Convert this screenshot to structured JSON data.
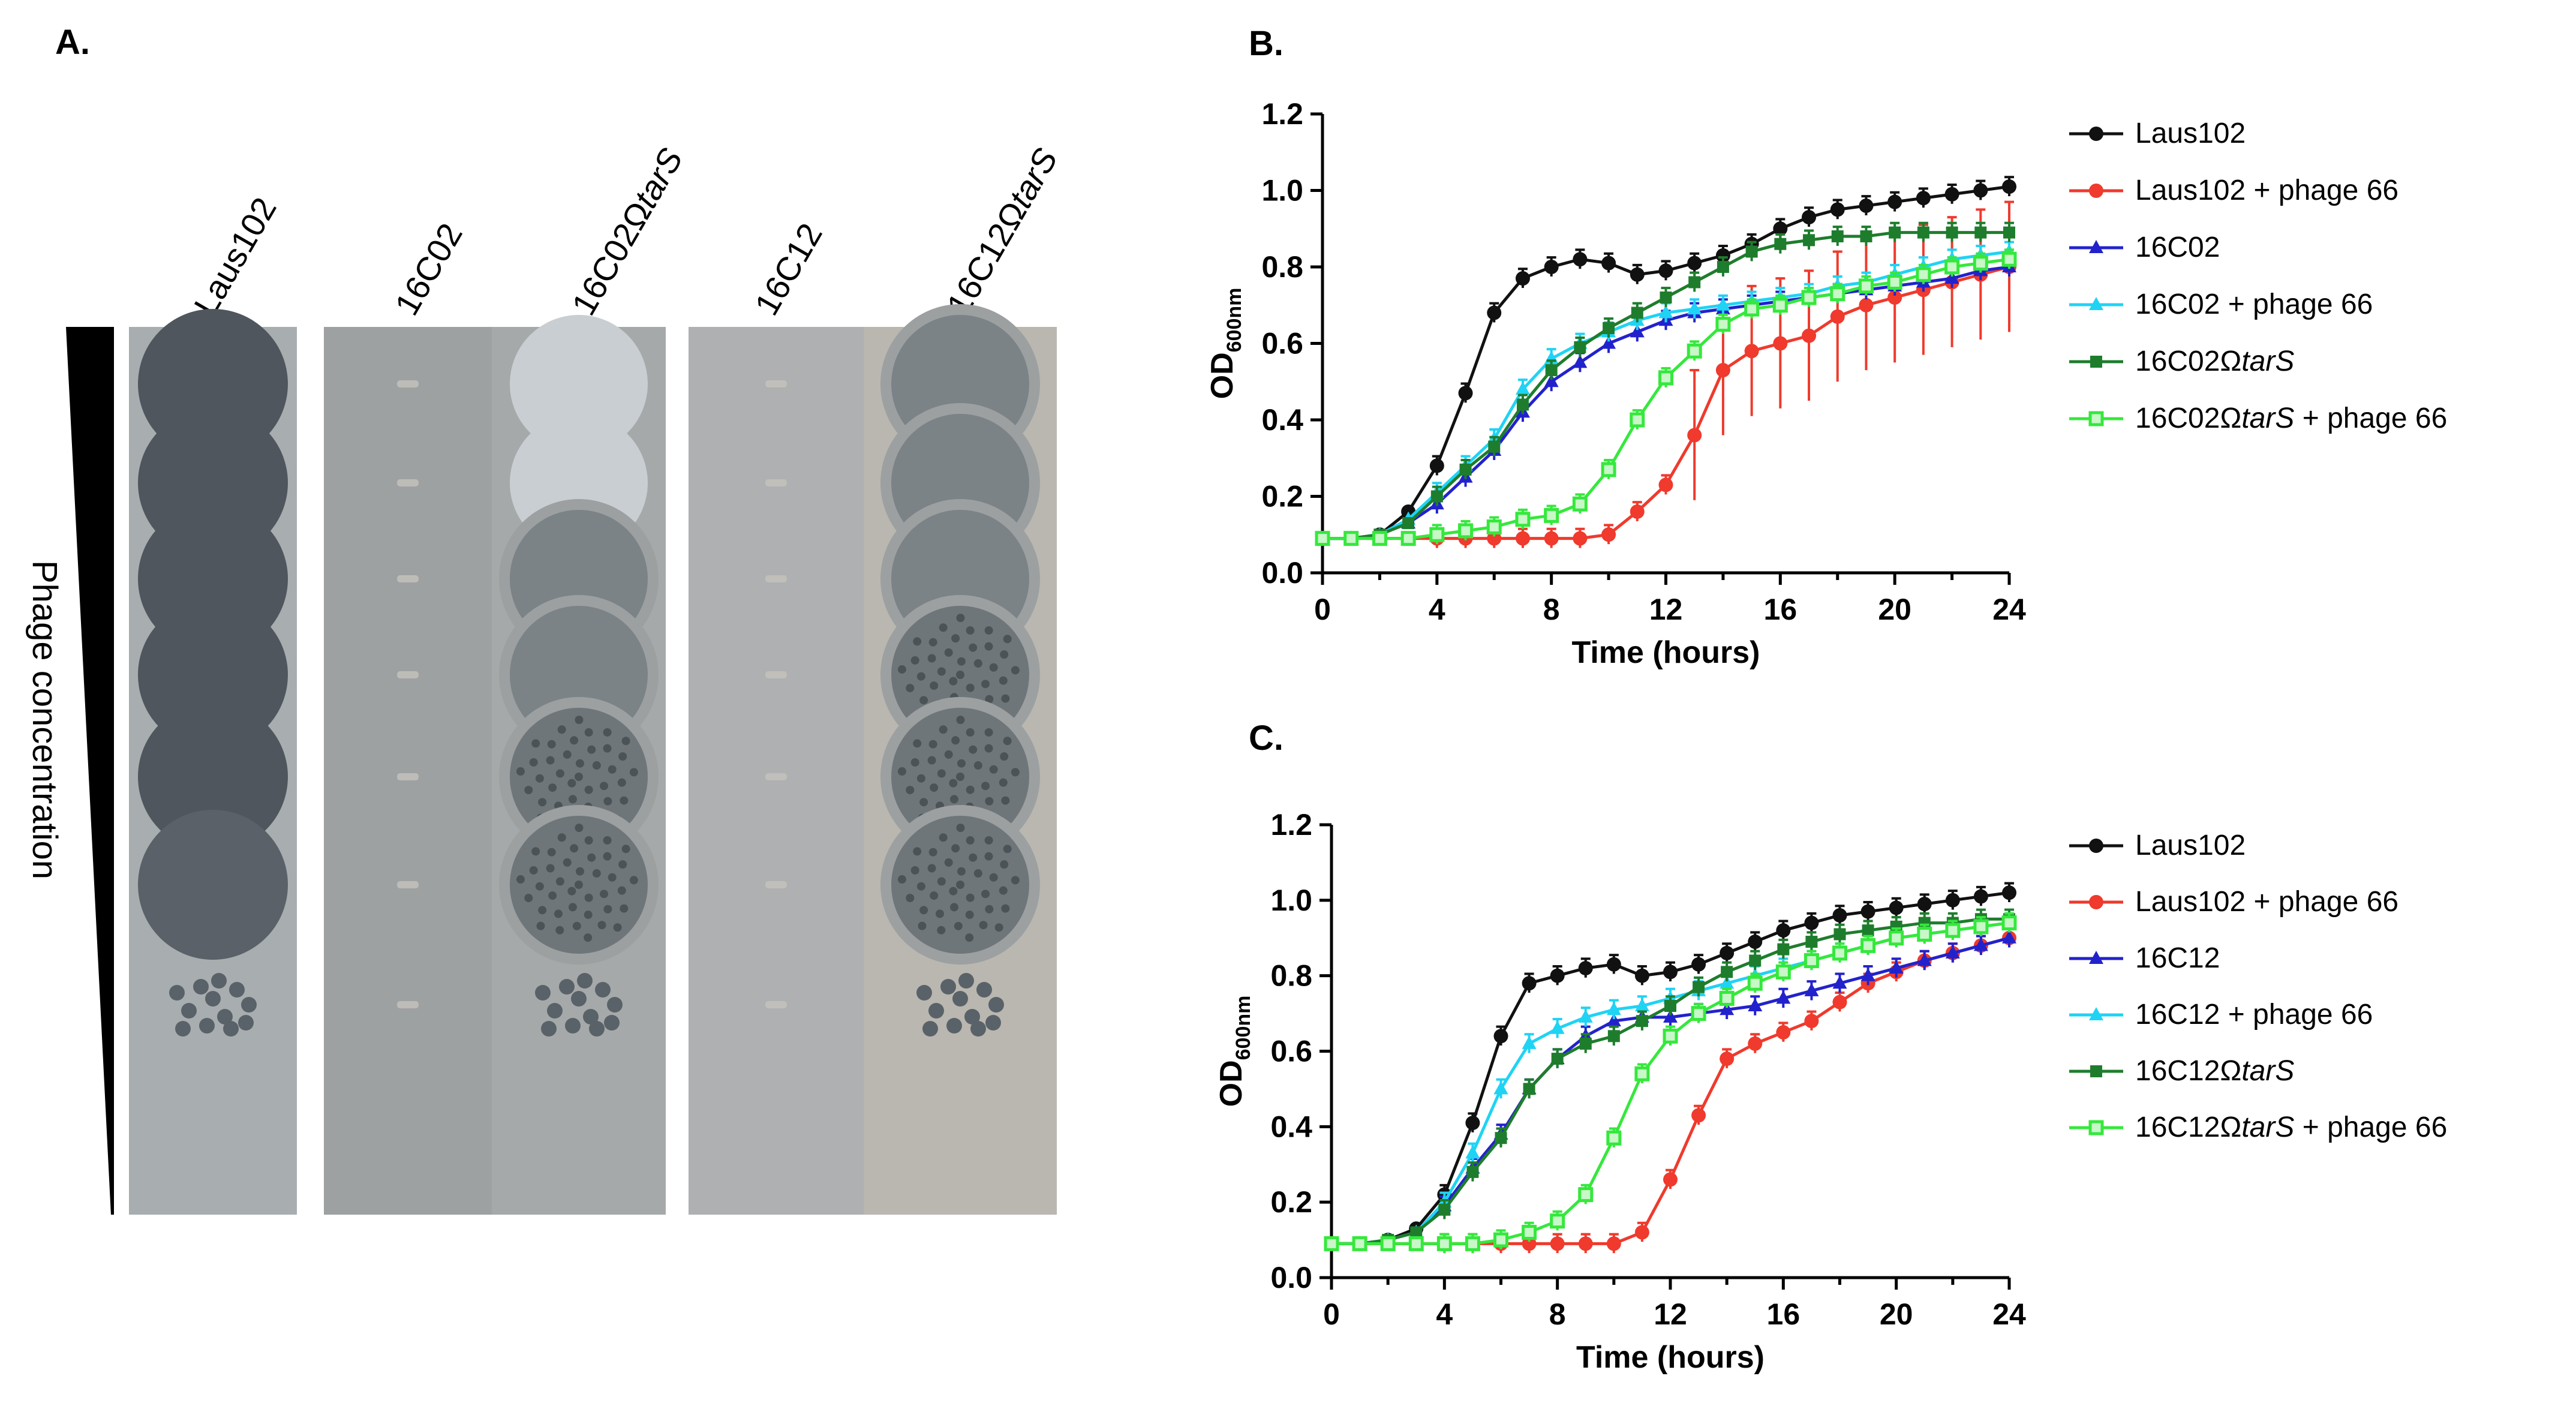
{
  "panel_a": {
    "label": "A.",
    "side_label": "Phage concentration",
    "strips": [
      {
        "name": "Laus102",
        "suffix": "",
        "plaques": [
          "clear",
          "clear",
          "clear",
          "clear",
          "clear",
          "clear-ragged",
          "spots"
        ]
      },
      {
        "name": "16C02",
        "suffix": "",
        "plaques": [
          "none",
          "none",
          "none",
          "none",
          "none",
          "none",
          "none"
        ]
      },
      {
        "name": "16C02Ω",
        "suffix": "tarS",
        "plaques": [
          "light",
          "light",
          "turbid",
          "turbid",
          "speckled",
          "speckled",
          "spots"
        ]
      },
      {
        "name": "16C12",
        "suffix": "",
        "plaques": [
          "none",
          "none",
          "none",
          "none",
          "none",
          "none",
          "none"
        ]
      },
      {
        "name": "16C12Ω",
        "suffix": "tarS",
        "plaques": [
          "turbid",
          "turbid",
          "turbid",
          "speckled",
          "speckled",
          "speckled",
          "spots"
        ]
      }
    ]
  },
  "chart_data": [
    {
      "panel_label": "B.",
      "type": "line",
      "xlabel": "Time (hours)",
      "ylabel": "OD",
      "ylabel_sub": "600nm",
      "xlim": [
        0,
        24
      ],
      "ylim": [
        0,
        1.2
      ],
      "xticks": [
        "0",
        "4",
        "8",
        "12",
        "16",
        "20",
        "24"
      ],
      "yticks": [
        "0.0",
        "0.2",
        "0.4",
        "0.6",
        "0.8",
        "1.0",
        "1.2"
      ],
      "x": [
        0,
        1,
        2,
        3,
        4,
        5,
        6,
        7,
        8,
        9,
        10,
        11,
        12,
        13,
        14,
        15,
        16,
        17,
        18,
        19,
        20,
        21,
        22,
        23,
        24
      ],
      "series": [
        {
          "name": "Laus102",
          "name_italic": "",
          "name_tail": "",
          "color": "#111111",
          "marker": "circle",
          "values": [
            0.09,
            0.09,
            0.1,
            0.16,
            0.28,
            0.47,
            0.68,
            0.77,
            0.8,
            0.82,
            0.81,
            0.78,
            0.79,
            0.81,
            0.83,
            0.86,
            0.9,
            0.93,
            0.95,
            0.96,
            0.97,
            0.98,
            0.99,
            1.0,
            1.01
          ]
        },
        {
          "name": "Laus102 + phage 66",
          "name_italic": "",
          "name_tail": "",
          "color": "#ef3a2d",
          "marker": "circle",
          "values": [
            0.09,
            0.09,
            0.09,
            0.09,
            0.09,
            0.09,
            0.09,
            0.09,
            0.09,
            0.09,
            0.1,
            0.16,
            0.23,
            0.36,
            0.53,
            0.58,
            0.6,
            0.62,
            0.67,
            0.7,
            0.72,
            0.74,
            0.76,
            0.78,
            0.8
          ]
        },
        {
          "name": "16C02",
          "name_italic": "",
          "name_tail": "",
          "color": "#2222cc",
          "marker": "triangle",
          "values": [
            0.09,
            0.09,
            0.1,
            0.13,
            0.18,
            0.25,
            0.32,
            0.42,
            0.5,
            0.55,
            0.6,
            0.63,
            0.66,
            0.68,
            0.69,
            0.7,
            0.71,
            0.72,
            0.73,
            0.74,
            0.75,
            0.76,
            0.77,
            0.79,
            0.8
          ]
        },
        {
          "name": "16C02 +  phage 66",
          "name_italic": "",
          "name_tail": "",
          "color": "#1fd3f4",
          "marker": "triangle",
          "values": [
            0.09,
            0.09,
            0.1,
            0.14,
            0.21,
            0.28,
            0.35,
            0.48,
            0.56,
            0.6,
            0.63,
            0.66,
            0.68,
            0.69,
            0.7,
            0.71,
            0.72,
            0.73,
            0.75,
            0.76,
            0.78,
            0.8,
            0.82,
            0.83,
            0.84
          ]
        },
        {
          "name": "16C02Ω",
          "name_italic": "tarS",
          "name_tail": "",
          "color": "#1e7d2c",
          "marker": "square",
          "values": [
            0.09,
            0.09,
            0.1,
            0.13,
            0.2,
            0.27,
            0.33,
            0.44,
            0.53,
            0.59,
            0.64,
            0.68,
            0.72,
            0.76,
            0.8,
            0.84,
            0.86,
            0.87,
            0.88,
            0.88,
            0.89,
            0.89,
            0.89,
            0.89,
            0.89
          ]
        },
        {
          "name": "16C02Ω",
          "name_italic": "tarS",
          "name_tail": " + phage 66",
          "color": "#35e83c",
          "marker": "square-open",
          "values": [
            0.09,
            0.09,
            0.09,
            0.09,
            0.1,
            0.11,
            0.12,
            0.14,
            0.15,
            0.18,
            0.27,
            0.4,
            0.51,
            0.58,
            0.65,
            0.69,
            0.7,
            0.72,
            0.73,
            0.75,
            0.76,
            0.78,
            0.8,
            0.81,
            0.82
          ]
        }
      ]
    },
    {
      "panel_label": "C.",
      "type": "line",
      "xlabel": "Time (hours)",
      "ylabel": "OD",
      "ylabel_sub": "600nm",
      "xlim": [
        0,
        24
      ],
      "ylim": [
        0,
        1.2
      ],
      "xticks": [
        "0",
        "4",
        "8",
        "12",
        "16",
        "20",
        "24"
      ],
      "yticks": [
        "0.0",
        "0.2",
        "0.4",
        "0.6",
        "0.8",
        "1.0",
        "1.2"
      ],
      "x": [
        0,
        1,
        2,
        3,
        4,
        5,
        6,
        7,
        8,
        9,
        10,
        11,
        12,
        13,
        14,
        15,
        16,
        17,
        18,
        19,
        20,
        21,
        22,
        23,
        24
      ],
      "series": [
        {
          "name": "Laus102",
          "name_italic": "",
          "name_tail": "",
          "color": "#111111",
          "marker": "circle",
          "values": [
            0.09,
            0.09,
            0.1,
            0.13,
            0.22,
            0.41,
            0.64,
            0.78,
            0.8,
            0.82,
            0.83,
            0.8,
            0.81,
            0.83,
            0.86,
            0.89,
            0.92,
            0.94,
            0.96,
            0.97,
            0.98,
            0.99,
            1.0,
            1.01,
            1.02
          ]
        },
        {
          "name": "Laus102 + phage 66",
          "name_italic": "",
          "name_tail": "",
          "color": "#ef3a2d",
          "marker": "circle",
          "values": [
            0.09,
            0.09,
            0.09,
            0.09,
            0.09,
            0.09,
            0.09,
            0.09,
            0.09,
            0.09,
            0.09,
            0.12,
            0.26,
            0.43,
            0.58,
            0.62,
            0.65,
            0.68,
            0.73,
            0.78,
            0.81,
            0.84,
            0.86,
            0.88,
            0.9
          ]
        },
        {
          "name": "16C12",
          "name_italic": "",
          "name_tail": "",
          "color": "#2222cc",
          "marker": "triangle",
          "values": [
            0.09,
            0.09,
            0.1,
            0.12,
            0.19,
            0.29,
            0.38,
            0.5,
            0.58,
            0.64,
            0.68,
            0.69,
            0.69,
            0.7,
            0.71,
            0.72,
            0.74,
            0.76,
            0.78,
            0.8,
            0.82,
            0.84,
            0.86,
            0.88,
            0.9
          ]
        },
        {
          "name": "16C12 + phage 66",
          "name_italic": "",
          "name_tail": "",
          "color": "#1fd3f4",
          "marker": "triangle",
          "values": [
            0.09,
            0.09,
            0.1,
            0.12,
            0.2,
            0.33,
            0.5,
            0.62,
            0.66,
            0.69,
            0.71,
            0.72,
            0.74,
            0.76,
            0.78,
            0.8,
            0.82,
            0.84,
            0.86,
            0.88,
            0.9,
            0.91,
            0.92,
            0.93,
            0.94
          ]
        },
        {
          "name": "16C12Ω",
          "name_italic": "tarS",
          "name_tail": "",
          "color": "#1e7d2c",
          "marker": "square",
          "values": [
            0.09,
            0.09,
            0.1,
            0.12,
            0.18,
            0.28,
            0.37,
            0.5,
            0.58,
            0.62,
            0.64,
            0.68,
            0.72,
            0.77,
            0.81,
            0.84,
            0.87,
            0.89,
            0.91,
            0.92,
            0.93,
            0.94,
            0.94,
            0.95,
            0.95
          ]
        },
        {
          "name": "16C12Ω",
          "name_italic": "tarS",
          "name_tail": " + phage 66",
          "color": "#35e83c",
          "marker": "square-open",
          "values": [
            0.09,
            0.09,
            0.09,
            0.09,
            0.09,
            0.09,
            0.1,
            0.12,
            0.15,
            0.22,
            0.37,
            0.54,
            0.64,
            0.7,
            0.74,
            0.78,
            0.81,
            0.84,
            0.86,
            0.88,
            0.9,
            0.91,
            0.92,
            0.93,
            0.94
          ]
        }
      ]
    }
  ]
}
